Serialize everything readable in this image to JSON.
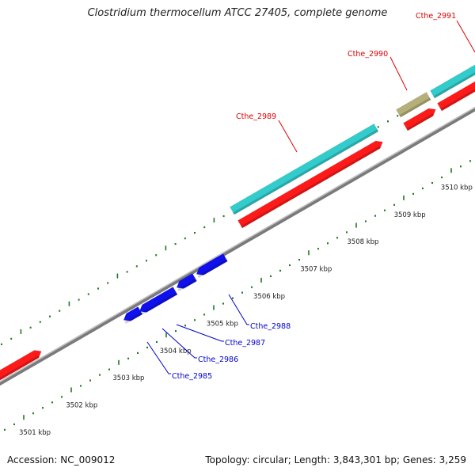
{
  "title": "Clostridium thermocellum ATCC 27405, complete genome",
  "accession": "Accession: NC_009012",
  "topology": "Topology: circular; Length: 3,843,301 bp; Genes: 3,259",
  "colors": {
    "background": "#ffffff",
    "backbone": "#888888",
    "tick": "#1f7a1f",
    "forward_cds": "#ff1a1a",
    "forward_feature": "#33cccc",
    "pseudo_feature": "#b5b07a",
    "reverse_cds": "#1010ee",
    "forward_label": "#dd0000",
    "reverse_label": "#0000cc",
    "scale_label": "#222222"
  },
  "scale_labels": [
    "3501 kbp",
    "3502 kbp",
    "3503 kbp",
    "3504 kbp",
    "3505 kbp",
    "3506 kbp",
    "3507 kbp",
    "3508 kbp",
    "3509 kbp",
    "3510 kbp"
  ],
  "gene_labels": {
    "forward": [
      "Cthe_2989",
      "Cthe_2990",
      "Cthe_2991"
    ],
    "reverse": [
      "Cthe_2985",
      "Cthe_2986",
      "Cthe_2987",
      "Cthe_2988"
    ]
  }
}
